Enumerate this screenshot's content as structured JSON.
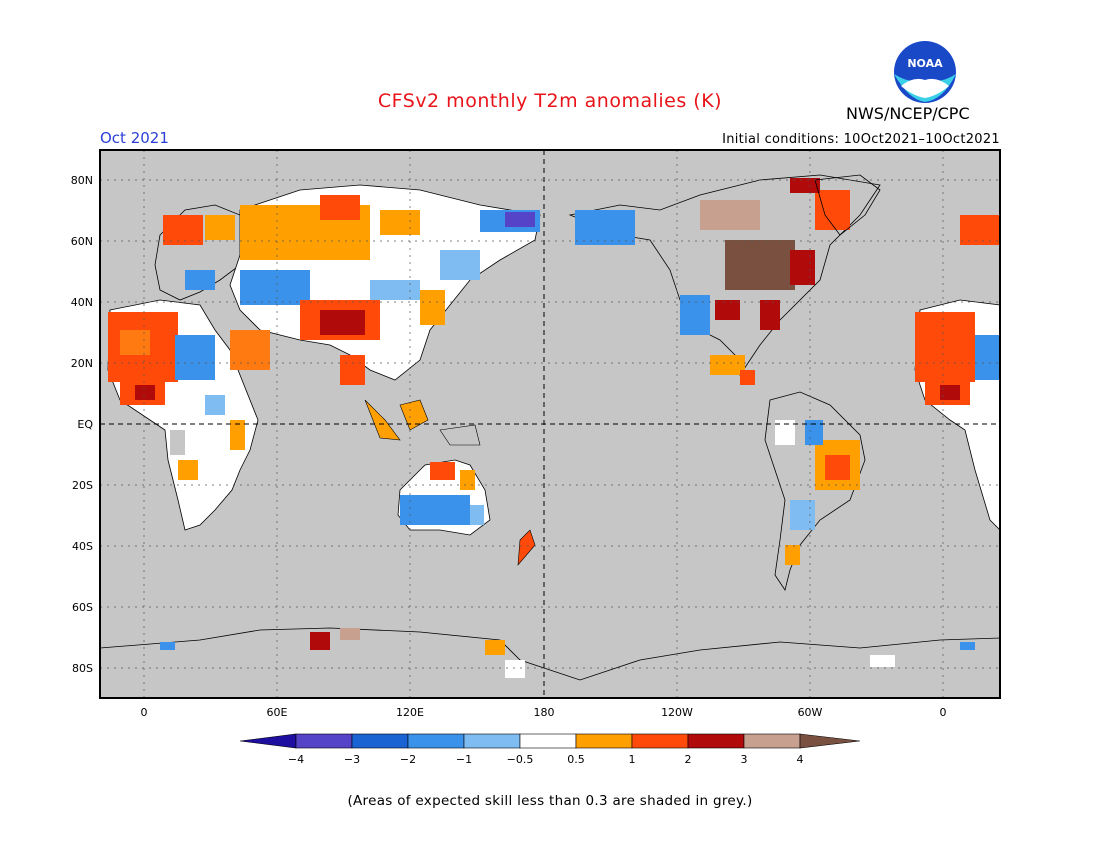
{
  "header": {
    "title": "CFSv2 monthly T2m anomalies (K)",
    "agency": "NWS/NCEP/CPC",
    "logo_text": "NOAA",
    "valid_month": "Oct 2021",
    "initial_conditions": "Initial conditions: 10Oct2021–10Oct2021"
  },
  "map": {
    "lat_labels": [
      "80N",
      "60N",
      "40N",
      "20N",
      "EQ",
      "20S",
      "40S",
      "60S",
      "80S"
    ],
    "lon_labels": [
      "0",
      "60E",
      "120E",
      "180",
      "120W",
      "60W",
      "0"
    ],
    "no_skill_color": "#c6c6c6",
    "equator_style": "dashed",
    "dateline_style": "dashed"
  },
  "colorbar": {
    "tick_labels": [
      "−4",
      "−3",
      "−2",
      "−1",
      "−0.5",
      "0.5",
      "1",
      "2",
      "3",
      "4"
    ],
    "colors": [
      "#1f0fa0",
      "#5543c8",
      "#1a63d2",
      "#3a92ea",
      "#7fbcf2",
      "#ffffff",
      "#ffa000",
      "#ff4a0a",
      "#b00a0a",
      "#c8a090",
      "#7a5040"
    ]
  },
  "footnote": "(Areas of expected skill less than 0.3 are shaded in grey.)"
}
